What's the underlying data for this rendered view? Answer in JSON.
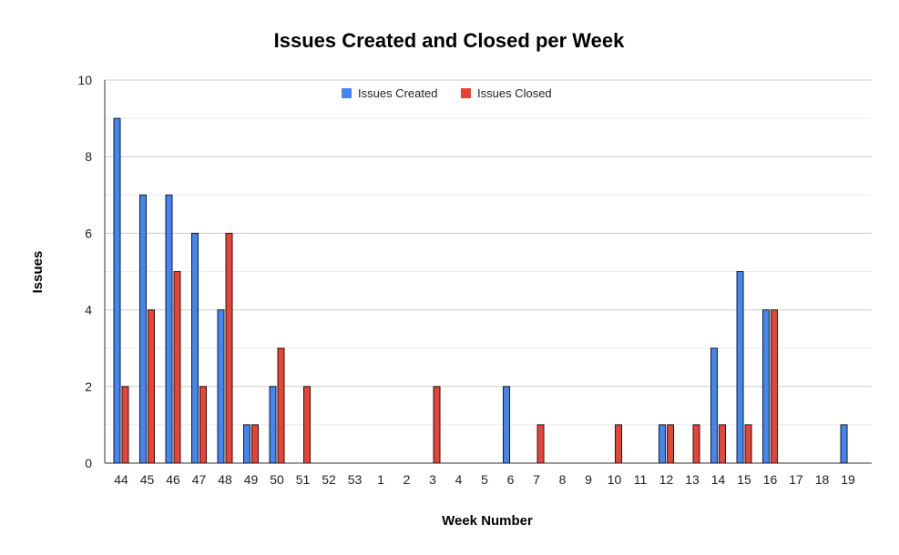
{
  "chart_data": {
    "type": "bar",
    "title": "Issues Created and Closed per Week",
    "xlabel": "Week Number",
    "ylabel": "Issues",
    "ylim": [
      0,
      10
    ],
    "y_ticks": [
      0,
      2,
      4,
      6,
      8,
      10
    ],
    "grid": true,
    "legend_position": "top-center",
    "categories": [
      "44",
      "45",
      "46",
      "47",
      "48",
      "49",
      "50",
      "51",
      "52",
      "53",
      "1",
      "2",
      "3",
      "4",
      "5",
      "6",
      "7",
      "8",
      "9",
      "10",
      "11",
      "12",
      "13",
      "14",
      "15",
      "16",
      "17",
      "18",
      "19"
    ],
    "series": [
      {
        "name": "Issues Created",
        "color": "#4285f4",
        "values": [
          9,
          7,
          7,
          6,
          4,
          1,
          2,
          0,
          0,
          0,
          0,
          0,
          0,
          0,
          0,
          2,
          0,
          0,
          0,
          0,
          0,
          1,
          0,
          3,
          5,
          4,
          0,
          0,
          1
        ]
      },
      {
        "name": "Issues Closed",
        "color": "#ea4335",
        "values": [
          2,
          4,
          5,
          2,
          6,
          1,
          3,
          2,
          0,
          0,
          0,
          0,
          2,
          0,
          0,
          0,
          1,
          0,
          0,
          1,
          0,
          1,
          1,
          1,
          1,
          4,
          0,
          0,
          0
        ]
      }
    ]
  }
}
